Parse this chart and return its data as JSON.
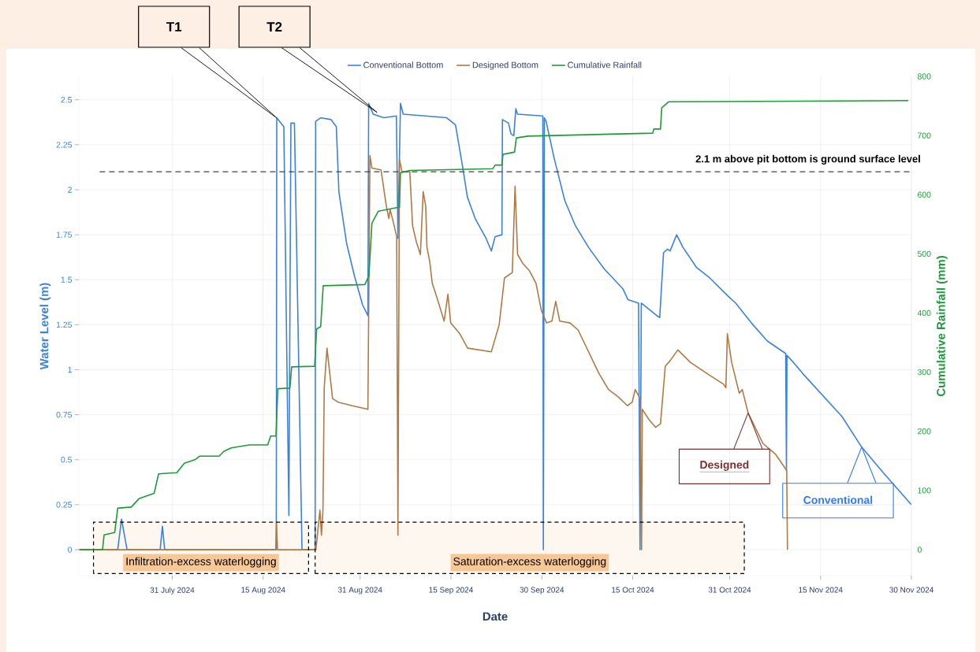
{
  "chart_data": {
    "type": "line",
    "xlabel": "Date",
    "ylabel": "Water Level (m)",
    "y2label": "Cumulative Rainfall (mm)",
    "xlim": [
      "2024-07-15T14:00",
      "2024-11-30T00:00"
    ],
    "xticks": [
      {
        "value": "2024-07-31",
        "label": "31 July 2024"
      },
      {
        "value": "2024-08-15",
        "label": "15 Aug 2024"
      },
      {
        "value": "2024-08-31",
        "label": "31 Aug 2024"
      },
      {
        "value": "2024-09-15",
        "label": "15 Sep 2024"
      },
      {
        "value": "2024-09-30",
        "label": "30 Sep 2024"
      },
      {
        "value": "2024-10-15",
        "label": "15 Oct 2024"
      },
      {
        "value": "2024-10-31",
        "label": "31 Oct 2024"
      },
      {
        "value": "2024-11-15",
        "label": "15 Nov 2024"
      },
      {
        "value": "2024-11-30",
        "label": "30 Nov 2024"
      }
    ],
    "ylim": [
      -0.144,
      2.63
    ],
    "yticks": [
      0,
      0.25,
      0.5,
      0.75,
      1,
      1.25,
      1.5,
      1.75,
      2,
      2.25,
      2.5
    ],
    "y2lim": [
      -44,
      800
    ],
    "y2ticks": [
      0,
      100,
      200,
      300,
      400,
      500,
      600,
      700,
      800
    ],
    "grid": true,
    "legend": "top",
    "series": [
      {
        "name": "Conventional Bottom",
        "color": "#3b82dc",
        "x": [
          "2024-07-15T16:00",
          "2024-07-22T00:00",
          "2024-07-22T15:00",
          "2024-07-23T13:00",
          "2024-07-29T00:00",
          "2024-07-29T09:00",
          "2024-07-29T18:00",
          "2024-08-17T04:00",
          "2024-08-17T06:00",
          "2024-08-18T10:00",
          "2024-08-19T06:00",
          "2024-08-19T14:00",
          "2024-08-20T04:00",
          "2024-08-21T10:00",
          "2024-08-23T14:00",
          "2024-08-23T16:00",
          "2024-08-24T12:00",
          "2024-08-26T05:00",
          "2024-08-27T02:00",
          "2024-08-27T12:00",
          "2024-08-28T19:00",
          "2024-08-30T02:00",
          "2024-08-31T10:00",
          "2024-09-01T07:00",
          "2024-09-01T10:00",
          "2024-09-02T04:00",
          "2024-09-03T22:00",
          "2024-09-06T00:00",
          "2024-09-06T06:00",
          "2024-09-06T16:00",
          "2024-09-07T03:00",
          "2024-09-10T19:00",
          "2024-09-14T07:00",
          "2024-09-15T18:00",
          "2024-09-16T22:00",
          "2024-09-17T17:00",
          "2024-09-19T00:00",
          "2024-09-20T19:00",
          "2024-09-21T16:00",
          "2024-09-22T07:00",
          "2024-09-23T10:00",
          "2024-09-23T12:00",
          "2024-09-24T12:00",
          "2024-09-24T22:00",
          "2024-09-25T09:00",
          "2024-09-25T17:00",
          "2024-09-26T00:00",
          "2024-09-30T04:00",
          "2024-09-30T06:00",
          "2024-09-30T10:00",
          "2024-09-30T17:00",
          "2024-10-02T00:00",
          "2024-10-03T19:00",
          "2024-10-05T13:00",
          "2024-10-07T17:00",
          "2024-10-10T07:00",
          "2024-10-13T09:00",
          "2024-10-14T05:00",
          "2024-10-15T23:00",
          "2024-10-16T05:00",
          "2024-10-16T10:00",
          "2024-10-19T00:00",
          "2024-10-19T11:00",
          "2024-10-20T02:00",
          "2024-10-20T18:00",
          "2024-10-21T04:00",
          "2024-10-22T06:00",
          "2024-10-23T07:00",
          "2024-10-25T12:00",
          "2024-10-27T17:00",
          "2024-10-30T17:00",
          "2024-11-01T00:00",
          "2024-11-03T14:00",
          "2024-11-06T05:00",
          "2024-11-09T06:00",
          "2024-11-09T09:00",
          "2024-11-09T11:00",
          "2024-11-10T13:00",
          "2024-11-12T07:00",
          "2024-11-18T13:00",
          "2024-11-21T19:00",
          "2024-11-25T07:00",
          "2024-11-30T00:00"
        ],
        "values": [
          0,
          0,
          0.17,
          0,
          0,
          0.13,
          0,
          0,
          2.4,
          2.35,
          0.19,
          2.37,
          2.37,
          0,
          0,
          2.38,
          2.4,
          2.39,
          2.35,
          1.99,
          1.7,
          1.52,
          1.36,
          1.3,
          2.48,
          2.42,
          2.4,
          2.41,
          1.73,
          2.48,
          2.42,
          2.41,
          2.4,
          2.36,
          2.13,
          1.96,
          1.84,
          1.73,
          1.66,
          1.74,
          1.75,
          2.39,
          2.37,
          2.31,
          2.3,
          2.45,
          2.42,
          2.41,
          0,
          2.4,
          2.38,
          2.18,
          1.94,
          1.8,
          1.68,
          1.56,
          1.45,
          1.39,
          1.37,
          0,
          1.37,
          1.3,
          1.29,
          1.65,
          1.67,
          1.66,
          1.75,
          1.68,
          1.57,
          1.51,
          1.41,
          1.37,
          1.26,
          1.16,
          1.09,
          0.44,
          1.08,
          1.04,
          0.97,
          0.74,
          0.57,
          0.43,
          0.25
        ]
      },
      {
        "name": "Designed Bottom",
        "color": "#b07a45",
        "x": [
          "2024-07-15T16:00",
          "2024-08-17T02:00",
          "2024-08-17T05:00",
          "2024-08-17T09:00",
          "2024-08-23T17:00",
          "2024-08-24T09:00",
          "2024-08-24T15:00",
          "2024-08-24T21:00",
          "2024-08-25T02:00",
          "2024-08-25T13:00",
          "2024-08-26T11:00",
          "2024-08-27T09:00",
          "2024-08-29T17:00",
          "2024-09-01T07:00",
          "2024-09-01T15:00",
          "2024-09-01T23:00",
          "2024-09-03T11:00",
          "2024-09-04T08:00",
          "2024-09-04T18:00",
          "2024-09-04T23:00",
          "2024-09-05T10:00",
          "2024-09-06T01:00",
          "2024-09-06T06:00",
          "2024-09-06T12:00",
          "2024-09-06T22:00",
          "2024-09-08T05:00",
          "2024-09-08T16:00",
          "2024-09-09T07:00",
          "2024-09-09T23:00",
          "2024-09-10T10:00",
          "2024-09-10T20:00",
          "2024-09-11T01:00",
          "2024-09-11T12:00",
          "2024-09-11T22:00",
          "2024-09-12T19:00",
          "2024-09-13T21:00",
          "2024-09-14T12:00",
          "2024-09-14T23:00",
          "2024-09-16T11:00",
          "2024-09-17T18:00",
          "2024-09-21T16:00",
          "2024-09-22T23:00",
          "2024-09-23T20:00",
          "2024-09-25T03:00",
          "2024-09-25T14:00",
          "2024-09-26T00:00",
          "2024-09-26T21:00",
          "2024-09-27T23:00",
          "2024-09-29T01:00",
          "2024-09-29T22:00",
          "2024-09-30T19:00",
          "2024-10-01T16:00",
          "2024-10-02T07:00",
          "2024-10-02T23:00",
          "2024-10-04T16:00",
          "2024-10-06T00:00",
          "2024-10-07T17:00",
          "2024-10-09T10:00",
          "2024-10-11T00:00",
          "2024-10-12T14:00",
          "2024-10-14T03:00",
          "2024-10-14T22:00",
          "2024-10-15T10:00",
          "2024-10-16T05:00",
          "2024-10-16T11:00",
          "2024-10-16T14:00",
          "2024-10-17T18:00",
          "2024-10-18T19:00",
          "2024-10-19T14:00",
          "2024-10-20T09:00",
          "2024-10-21T04:00",
          "2024-10-22T11:00",
          "2024-10-24T13:00",
          "2024-10-27T16:00",
          "2024-10-30T00:00",
          "2024-10-30T09:00",
          "2024-10-30T15:00",
          "2024-10-31T08:00",
          "2024-11-01T14:00",
          "2024-11-02T02:00",
          "2024-11-03T01:00",
          "2024-11-05T12:00",
          "2024-11-07T14:00",
          "2024-11-09T10:00",
          "2024-11-09T13:00"
        ],
        "values": [
          0,
          0,
          0.15,
          0,
          0,
          0.22,
          0.08,
          0.22,
          0.9,
          1.12,
          0.84,
          0.82,
          0.8,
          0.78,
          2.19,
          2.12,
          2.11,
          1.91,
          1.84,
          1.89,
          1.83,
          1.74,
          0.08,
          2.17,
          2.1,
          2.1,
          1.8,
          1.71,
          1.64,
          1.99,
          1.91,
          1.68,
          1.6,
          1.48,
          1.39,
          1.27,
          1.42,
          1.26,
          1.2,
          1.12,
          1.1,
          1.25,
          1.51,
          1.54,
          2.02,
          1.64,
          1.59,
          1.55,
          1.48,
          1.33,
          1.26,
          1.27,
          1.38,
          1.27,
          1.26,
          1.22,
          1.1,
          0.98,
          0.89,
          0.85,
          0.8,
          0.82,
          0.89,
          0.84,
          0,
          0.78,
          0.72,
          0.68,
          0.7,
          1.02,
          1.05,
          1.11,
          1.04,
          0.97,
          0.92,
          0.9,
          1.2,
          1.04,
          0.87,
          0.89,
          0.76,
          0.59,
          0.53,
          0.44,
          0
        ]
      },
      {
        "name": "Cumulative Rainfall",
        "color": "#1f9a3a",
        "axis": "y2",
        "x": [
          "2024-07-15T16:00",
          "2024-07-19T12:00",
          "2024-07-19T18:00",
          "2024-07-21T12:00",
          "2024-07-22T00:00",
          "2024-07-24T06:00",
          "2024-07-25T12:00",
          "2024-07-28T00:00",
          "2024-07-28T18:00",
          "2024-07-31T18:00",
          "2024-08-02T00:00",
          "2024-08-03T18:00",
          "2024-08-04T12:00",
          "2024-08-07T18:00",
          "2024-08-08T12:00",
          "2024-08-09T18:00",
          "2024-08-12T18:00",
          "2024-08-15T18:00",
          "2024-08-16T06:00",
          "2024-08-17T03:00",
          "2024-08-17T10:00",
          "2024-08-19T10:00",
          "2024-08-19T17:00",
          "2024-08-23T12:00",
          "2024-08-23T20:00",
          "2024-08-24T12:00",
          "2024-08-24T22:00",
          "2024-08-31T19:00",
          "2024-09-01T11:00",
          "2024-09-01T23:00",
          "2024-09-03T00:00",
          "2024-09-06T12:00",
          "2024-09-06T16:00",
          "2024-09-08T05:00",
          "2024-09-21T22:00",
          "2024-09-22T07:00",
          "2024-09-23T10:00",
          "2024-09-23T14:00",
          "2024-09-25T12:00",
          "2024-09-25T19:00",
          "2024-09-27T17:00",
          "2024-10-18T07:00",
          "2024-10-18T12:00",
          "2024-10-19T14:00",
          "2024-10-19T19:00",
          "2024-10-20T22:00",
          "2024-11-29T12:00"
        ],
        "values": [
          0,
          0,
          25,
          29,
          70,
          72,
          86,
          95,
          128,
          130,
          146,
          152,
          158,
          158,
          166,
          172,
          177,
          177,
          192,
          192,
          272,
          273,
          309,
          310,
          373,
          377,
          446,
          448,
          463,
          552,
          572,
          579,
          637,
          641,
          644,
          650,
          650,
          668,
          672,
          696,
          699,
          704,
          711,
          711,
          747,
          757,
          759
        ]
      }
    ],
    "ref_lines": [
      {
        "axis": "y",
        "value": 2.1,
        "label": "2.1 m above pit bottom is ground surface level",
        "color": "#444444",
        "line_style": "dashed"
      }
    ],
    "bands": [
      {
        "axis": "x",
        "from": "2024-07-18T00:00",
        "to": "2024-08-22T12:00",
        "label": "Infiltration-excess waterlogging"
      },
      {
        "axis": "x",
        "from": "2024-08-23T14:00",
        "to": "2024-11-02T10:00",
        "label": "Saturation-excess waterlogging"
      }
    ],
    "annotations": [
      {
        "text": "T1",
        "x": "2024-08-17T05:00",
        "y": 2.4
      },
      {
        "text": "T2",
        "x": "2024-09-02T19:00",
        "y": 2.43
      },
      {
        "text": "Designed",
        "x": "2024-11-03T01:00",
        "y": 0.76
      },
      {
        "text": "Conventional",
        "x": "2024-11-21T19:00",
        "y": 0.57
      }
    ]
  }
}
